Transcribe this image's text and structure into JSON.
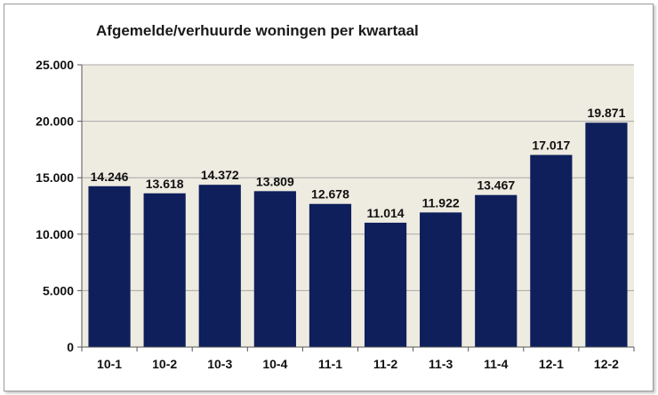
{
  "chart_data": {
    "type": "bar",
    "title": "Afgemelde/verhuurde woningen per kwartaal",
    "categories": [
      "10-1",
      "10-2",
      "10-3",
      "10-4",
      "11-1",
      "11-2",
      "11-3",
      "11-4",
      "12-1",
      "12-2"
    ],
    "values": [
      14246,
      13618,
      14372,
      13809,
      12678,
      11014,
      11922,
      13467,
      17017,
      19871
    ],
    "value_labels": [
      "14.246",
      "13.618",
      "14.372",
      "13.809",
      "12.678",
      "11.014",
      "11.922",
      "13.467",
      "17.017",
      "19.871"
    ],
    "yticks": [
      0,
      5000,
      10000,
      15000,
      20000,
      25000
    ],
    "ytick_labels": [
      "0",
      "5.000",
      "10.000",
      "15.000",
      "20.000",
      "25.000"
    ],
    "ylim": [
      0,
      25000
    ],
    "grid": true,
    "legend": "none",
    "colors": {
      "bar": "#0e1f5b",
      "plot_background": "#eeebe0",
      "gridline": "#a8a8a8"
    }
  }
}
